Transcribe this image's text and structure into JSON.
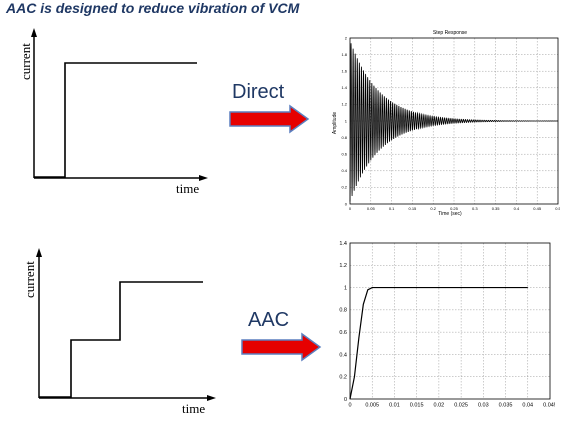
{
  "title": "AAC is designed to reduce vibration of VCM",
  "top_row": {
    "current_label": "current",
    "time_label": "time",
    "arrow_label": "Direct"
  },
  "bottom_row": {
    "current_label": "current",
    "time_label": "time",
    "arrow_label": "AAC"
  },
  "colors": {
    "title": "#1f3864",
    "arrow": "#e60000",
    "arrow_outline": "#5b7fbf",
    "curve": "#000000"
  },
  "chart_data": [
    {
      "type": "line",
      "title": "Step Response",
      "xlabel": "Time (sec)",
      "ylabel": "Amplitude",
      "xlim": [
        0,
        0.5
      ],
      "ylim": [
        0,
        2
      ],
      "x_ticks": [
        "0",
        "0.05",
        "0.1",
        "0.15",
        "0.2",
        "0.25",
        "0.3",
        "0.35",
        "0.4",
        "0.45",
        "0.5"
      ],
      "y_ticks": [
        "0",
        "0.2",
        "0.4",
        "0.6",
        "0.8",
        "1",
        "1.2",
        "1.4",
        "1.6",
        "1.8",
        "2"
      ],
      "grid": true,
      "series": [
        {
          "description_values": {
            "final_value": 1,
            "initial_overshoot": 1.97,
            "oscillation_period": 0.005,
            "decay_time_constant": 0.07
          }
        }
      ]
    },
    {
      "type": "line",
      "title": "",
      "xlabel": "",
      "ylabel": "",
      "xlim": [
        0,
        0.045
      ],
      "ylim": [
        0,
        1.4
      ],
      "x_ticks": [
        "0",
        "0.005",
        "0.01",
        "0.015",
        "0.02",
        "0.025",
        "0.03",
        "0.035",
        "0.04",
        "0.045"
      ],
      "y_ticks": [
        "0",
        "0.2",
        "0.4",
        "0.6",
        "0.8",
        "1",
        "1.2",
        "1.4"
      ],
      "grid": true,
      "series": [
        {
          "x": [
            0,
            0.001,
            0.002,
            0.003,
            0.004,
            0.005,
            0.01,
            0.02,
            0.03,
            0.04
          ],
          "values": [
            0,
            0.2,
            0.55,
            0.85,
            0.98,
            1,
            1,
            1,
            1,
            1
          ]
        }
      ]
    }
  ]
}
